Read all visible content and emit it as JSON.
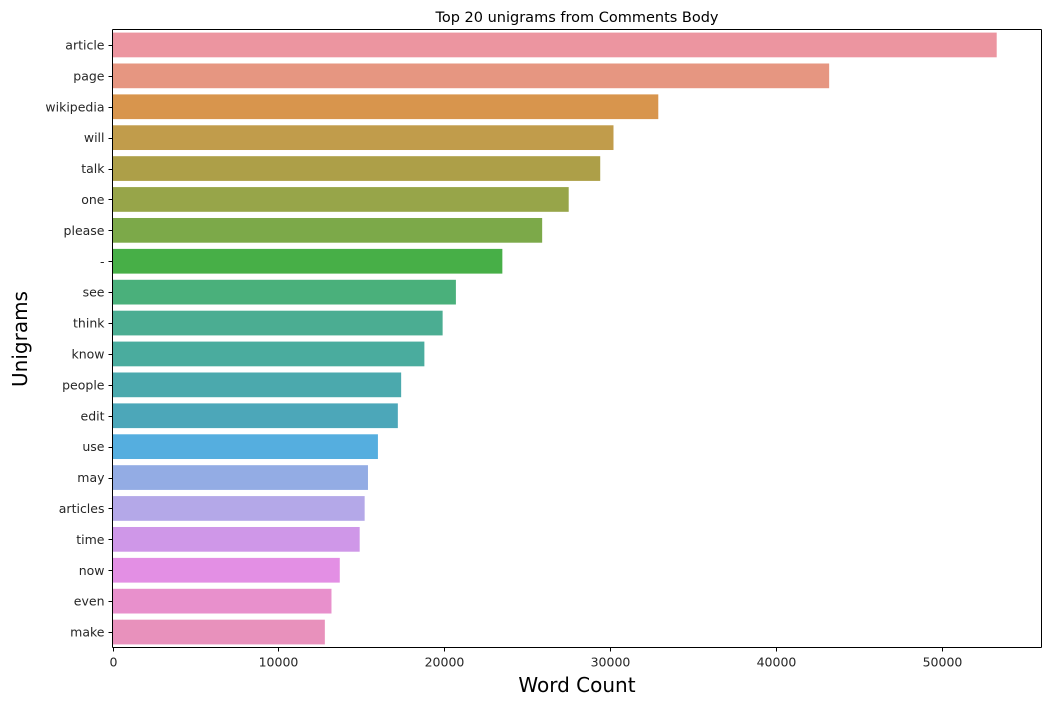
{
  "chart_data": {
    "type": "bar",
    "orientation": "horizontal",
    "title": "Top 20 unigrams from Comments Body",
    "xlabel": "Word Count",
    "ylabel": "Unigrams",
    "categories": [
      "article",
      "page",
      "wikipedia",
      "will",
      "talk",
      "one",
      "please",
      "-",
      "see",
      "think",
      "know",
      "people",
      "edit",
      "use",
      "may",
      "articles",
      "time",
      "now",
      "even",
      "make"
    ],
    "values": [
      53300,
      43200,
      32900,
      30200,
      29400,
      27500,
      25900,
      23500,
      20700,
      19900,
      18800,
      17400,
      17200,
      16000,
      15400,
      15200,
      14900,
      13700,
      13200,
      12800
    ],
    "colors": [
      "#ec95a0",
      "#e69681",
      "#d8954d",
      "#c19c4b",
      "#ad9f48",
      "#97a549",
      "#7ca949",
      "#47af47",
      "#4ab07b",
      "#4bad92",
      "#4aac9e",
      "#4ba9ad",
      "#4ca7b9",
      "#55aedf",
      "#93ace4",
      "#b4a8e8",
      "#cf97e8",
      "#e38fe4",
      "#e890cc",
      "#e891bc"
    ],
    "xticks": [
      "0",
      "10000",
      "20000",
      "30000",
      "40000",
      "50000"
    ],
    "xlim": [
      0,
      56000
    ],
    "grid": false,
    "legend": "none"
  }
}
